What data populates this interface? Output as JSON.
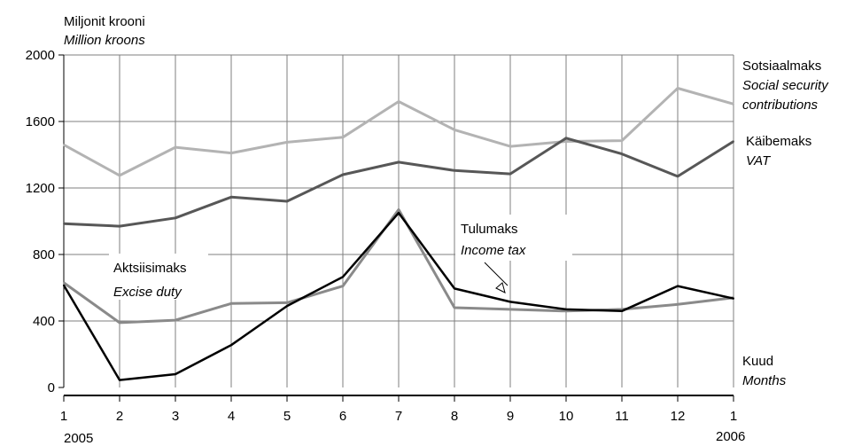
{
  "chart_data": {
    "type": "line",
    "yaxis_title": [
      "Miljonit krooni",
      "Million kroons"
    ],
    "xaxis_title": [
      "Kuud",
      "Months"
    ],
    "x_labels": [
      "1",
      "2",
      "3",
      "4",
      "5",
      "6",
      "7",
      "8",
      "9",
      "10",
      "11",
      "12",
      "1"
    ],
    "year_labels": [
      "2005",
      "2006"
    ],
    "y_ticks": [
      0,
      400,
      800,
      1200,
      1600,
      2000
    ],
    "ylim": [
      0,
      2000
    ],
    "grid": true,
    "colors": {
      "social": "#b3b3b3",
      "vat": "#575757",
      "excise": "#8a8a8a",
      "income": "#000000",
      "grid": "#7f7f7f"
    },
    "series": [
      {
        "key": "social",
        "name": [
          "Sotsiaalmaks",
          "Social security",
          "contributions"
        ],
        "values": [
          1460,
          1275,
          1445,
          1410,
          1475,
          1505,
          1720,
          1550,
          1450,
          1480,
          1485,
          1800,
          1705
        ]
      },
      {
        "key": "vat",
        "name": [
          "Käibemaks",
          "VAT"
        ],
        "values": [
          985,
          970,
          1020,
          1145,
          1120,
          1280,
          1355,
          1305,
          1285,
          1500,
          1405,
          1270,
          1480
        ]
      },
      {
        "key": "excise",
        "name": [
          "Aktsiisimaks",
          "Excise duty"
        ],
        "values": [
          630,
          390,
          405,
          505,
          510,
          610,
          1070,
          480,
          470,
          460,
          470,
          500,
          540
        ]
      },
      {
        "key": "income",
        "name": [
          "Tulumaks",
          "Income tax"
        ],
        "values": [
          615,
          45,
          80,
          255,
          490,
          665,
          1050,
          595,
          515,
          470,
          460,
          610,
          535
        ]
      }
    ]
  }
}
